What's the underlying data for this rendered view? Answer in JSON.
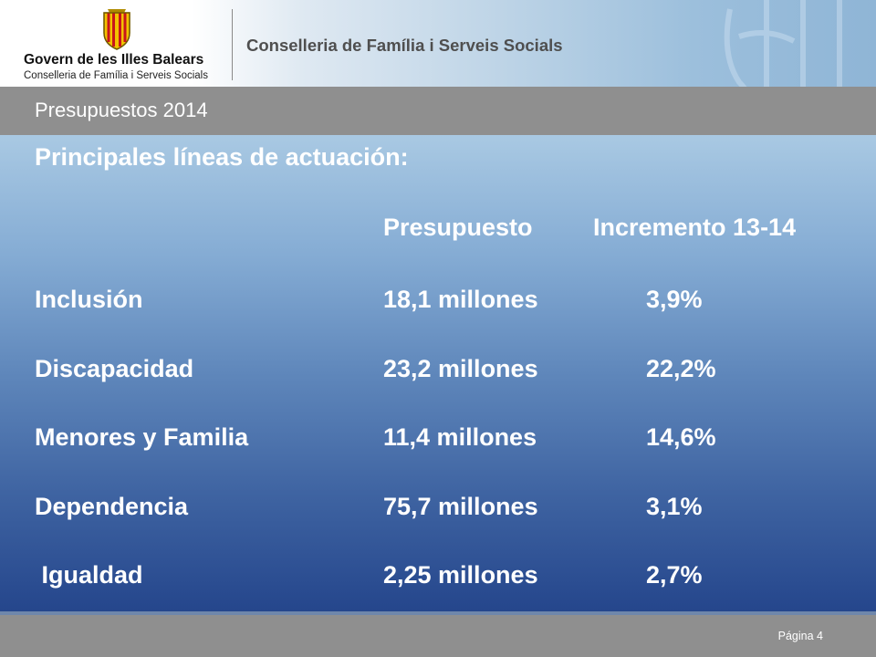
{
  "header": {
    "government_name": "Govern de les Illes Balears",
    "government_subtitle": "Conselleria de Família i Serveis Socials",
    "title": "Conselleria de Família i Serveis Socials"
  },
  "banner": {
    "label": "Presupuestos 2014"
  },
  "content": {
    "heading": "Principales líneas de actuación:",
    "columns": {
      "budget": "Presupuesto",
      "increment": "Incremento 13-14"
    },
    "rows": [
      {
        "name": "Inclusión",
        "budget": "18,1 millones",
        "increment": "3,9%"
      },
      {
        "name": "Discapacidad",
        "budget": "23,2 millones",
        "increment": "22,2%"
      },
      {
        "name": "Menores y Familia",
        "budget": "11,4 millones",
        "increment": "14,6%"
      },
      {
        "name": "Dependencia",
        "budget": "75,7 millones",
        "increment": "3,1%"
      },
      {
        "name": " Igualdad",
        "budget": "2,25 millones",
        "increment": "2,7%"
      }
    ]
  },
  "footer": {
    "page_label": "Página 4"
  }
}
